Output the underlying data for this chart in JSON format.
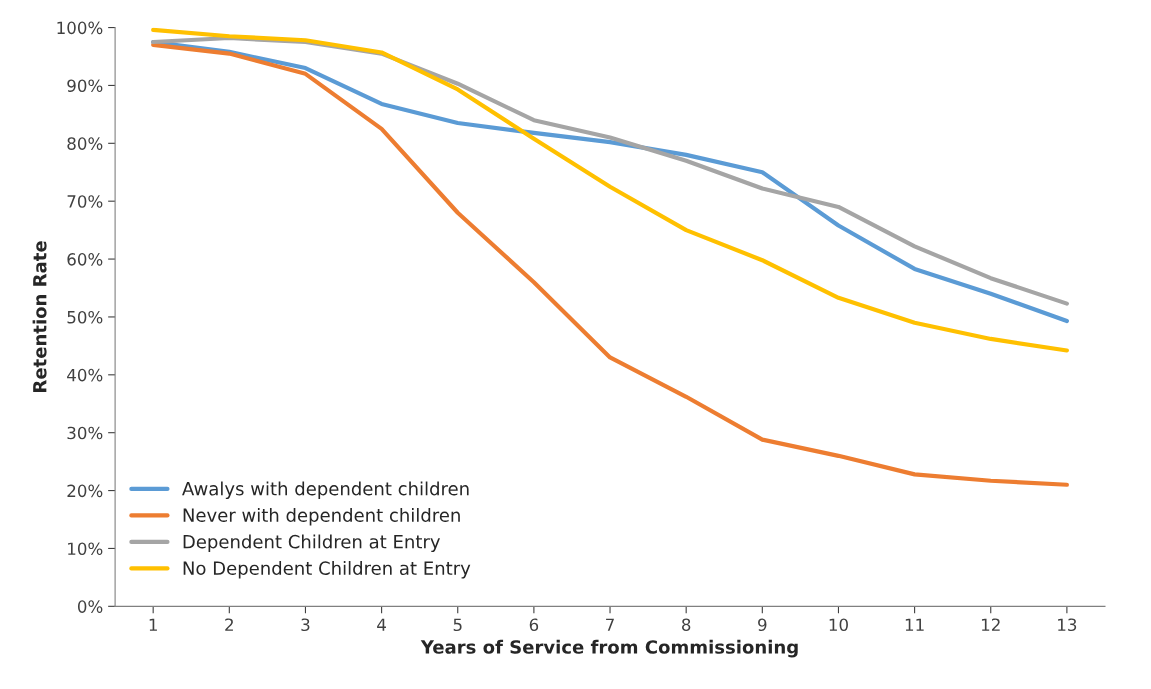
{
  "chart_data": {
    "type": "line",
    "xlabel": "Years of Service from Commissioning",
    "ylabel": "Retention Rate",
    "categories": [
      "1",
      "2",
      "3",
      "4",
      "5",
      "6",
      "7",
      "8",
      "9",
      "10",
      "11",
      "12",
      "13"
    ],
    "series": [
      {
        "name": "Awalys with dependent children",
        "color": "#5b9bd5",
        "values": [
          97.5,
          95.8,
          93,
          86.8,
          83.5,
          81.8,
          80.2,
          78,
          75,
          65.8,
          58.3,
          54,
          49.3
        ]
      },
      {
        "name": "Never with dependent children",
        "color": "#ed7d31",
        "values": [
          97,
          95.5,
          92,
          82.5,
          68,
          56,
          43,
          36.2,
          28.8,
          26,
          22.8,
          21.7,
          21
        ]
      },
      {
        "name": "Dependent Children at Entry",
        "color": "#a5a5a5",
        "values": [
          97.5,
          98.2,
          97.5,
          95.5,
          90.3,
          84,
          81,
          77,
          72.2,
          69,
          62.2,
          56.7,
          52.3
        ]
      },
      {
        "name": "No Dependent Children at Entry",
        "color": "#ffc000",
        "values": [
          99.6,
          98.5,
          97.8,
          95.7,
          89.3,
          80.8,
          72.5,
          65,
          59.8,
          53.3,
          49,
          46.2,
          44.2
        ]
      }
    ],
    "ylim": [
      0,
      100
    ],
    "yticks": [
      {
        "value": 0,
        "label": "0%"
      },
      {
        "value": 10,
        "label": "10%"
      },
      {
        "value": 20,
        "label": "20%"
      },
      {
        "value": 30,
        "label": "30%"
      },
      {
        "value": 40,
        "label": "40%"
      },
      {
        "value": 50,
        "label": "50%"
      },
      {
        "value": 60,
        "label": "60%"
      },
      {
        "value": 70,
        "label": "70%"
      },
      {
        "value": 80,
        "label": "80%"
      },
      {
        "value": 90,
        "label": "90%"
      },
      {
        "value": 100,
        "label": "100%"
      }
    ],
    "grid": false,
    "legend": "bottom left",
    "line_style": "solid",
    "marker": "none"
  }
}
